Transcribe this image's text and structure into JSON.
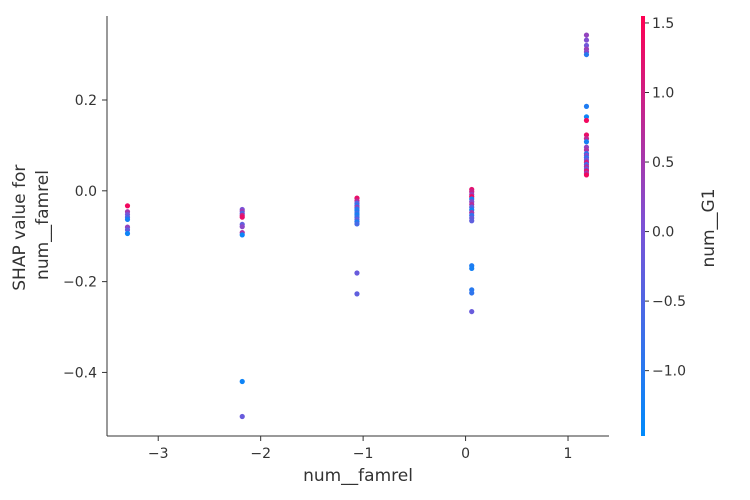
{
  "chart_data": {
    "type": "scatter",
    "title": "",
    "xlabel": "num__famrel",
    "ylabel_lines": [
      "SHAP value for",
      "num__famrel"
    ],
    "xlim": [
      -3.5,
      1.4
    ],
    "ylim": [
      -0.54,
      0.385
    ],
    "xticks": [
      -3,
      -2,
      -1,
      0,
      1
    ],
    "xtick_labels": [
      "−3",
      "−2",
      "−1",
      "0",
      "1"
    ],
    "yticks": [
      -0.4,
      -0.2,
      0.0,
      0.2
    ],
    "ytick_labels": [
      "−0.4",
      "−0.2",
      "0.0",
      "0.2"
    ],
    "grid": false,
    "colorbar": {
      "label": "num__G1",
      "range": [
        -1.47,
        1.55
      ],
      "ticks": [
        -1.0,
        -0.5,
        0.0,
        0.5,
        1.0,
        1.5
      ],
      "tick_labels": [
        "−1.0",
        "−0.5",
        "0.0",
        "0.5",
        "1.0",
        "1.5"
      ],
      "colormap": [
        "#008afb",
        "#7c52d6",
        "#ff0052"
      ]
    },
    "points": [
      {
        "x": -3.3,
        "y": -0.033,
        "c": 1.4
      },
      {
        "x": -3.3,
        "y": -0.046,
        "c": 0.5
      },
      {
        "x": -3.3,
        "y": -0.052,
        "c": 0.0
      },
      {
        "x": -3.3,
        "y": -0.058,
        "c": -0.5
      },
      {
        "x": -3.3,
        "y": -0.063,
        "c": -1.2
      },
      {
        "x": -3.3,
        "y": -0.08,
        "c": 0.3
      },
      {
        "x": -3.3,
        "y": -0.086,
        "c": -0.3
      },
      {
        "x": -3.3,
        "y": -0.094,
        "c": -1.3
      },
      {
        "x": -2.18,
        "y": -0.041,
        "c": 0.0
      },
      {
        "x": -2.18,
        "y": -0.045,
        "c": 0.4
      },
      {
        "x": -2.18,
        "y": -0.05,
        "c": -0.5
      },
      {
        "x": -2.18,
        "y": -0.054,
        "c": 0.9
      },
      {
        "x": -2.18,
        "y": -0.058,
        "c": 1.3
      },
      {
        "x": -2.18,
        "y": -0.074,
        "c": -0.3
      },
      {
        "x": -2.18,
        "y": -0.079,
        "c": 0.2
      },
      {
        "x": -2.18,
        "y": -0.092,
        "c": 0.6
      },
      {
        "x": -2.18,
        "y": -0.097,
        "c": -1.3
      },
      {
        "x": -2.18,
        "y": -0.42,
        "c": -1.3
      },
      {
        "x": -2.18,
        "y": -0.497,
        "c": -0.2
      },
      {
        "x": -1.06,
        "y": -0.016,
        "c": 1.3
      },
      {
        "x": -1.06,
        "y": -0.022,
        "c": 0.8
      },
      {
        "x": -1.06,
        "y": -0.027,
        "c": -0.4
      },
      {
        "x": -1.06,
        "y": -0.032,
        "c": -1.0
      },
      {
        "x": -1.06,
        "y": -0.036,
        "c": 0.4
      },
      {
        "x": -1.06,
        "y": -0.04,
        "c": -0.9
      },
      {
        "x": -1.06,
        "y": -0.044,
        "c": -1.1
      },
      {
        "x": -1.06,
        "y": -0.049,
        "c": -0.7
      },
      {
        "x": -1.06,
        "y": -0.053,
        "c": -1.2
      },
      {
        "x": -1.06,
        "y": -0.058,
        "c": -0.8
      },
      {
        "x": -1.06,
        "y": -0.063,
        "c": -0.2
      },
      {
        "x": -1.06,
        "y": -0.068,
        "c": -1.1
      },
      {
        "x": -1.06,
        "y": -0.073,
        "c": -0.6
      },
      {
        "x": -1.06,
        "y": -0.181,
        "c": -0.2
      },
      {
        "x": -1.06,
        "y": -0.227,
        "c": -0.3
      },
      {
        "x": 0.06,
        "y": 0.003,
        "c": 1.2
      },
      {
        "x": 0.06,
        "y": -0.002,
        "c": 0.9
      },
      {
        "x": 0.06,
        "y": -0.008,
        "c": 0.4
      },
      {
        "x": 0.06,
        "y": -0.013,
        "c": 1.4
      },
      {
        "x": 0.06,
        "y": -0.018,
        "c": -1.1
      },
      {
        "x": 0.06,
        "y": -0.024,
        "c": 0.2
      },
      {
        "x": 0.06,
        "y": -0.03,
        "c": 0.7
      },
      {
        "x": 0.06,
        "y": -0.036,
        "c": -0.4
      },
      {
        "x": 0.06,
        "y": -0.042,
        "c": -1.2
      },
      {
        "x": 0.06,
        "y": -0.048,
        "c": 0.5
      },
      {
        "x": 0.06,
        "y": -0.054,
        "c": -0.8
      },
      {
        "x": 0.06,
        "y": -0.06,
        "c": -0.2
      },
      {
        "x": 0.06,
        "y": -0.066,
        "c": -0.3
      },
      {
        "x": 0.06,
        "y": -0.165,
        "c": -1.1
      },
      {
        "x": 0.06,
        "y": -0.171,
        "c": -1.2
      },
      {
        "x": 0.06,
        "y": -0.218,
        "c": -1.0
      },
      {
        "x": 0.06,
        "y": -0.225,
        "c": -0.9
      },
      {
        "x": 0.06,
        "y": -0.266,
        "c": -0.2
      },
      {
        "x": 1.18,
        "y": 0.343,
        "c": 0.3
      },
      {
        "x": 1.18,
        "y": 0.332,
        "c": 0.1
      },
      {
        "x": 1.18,
        "y": 0.32,
        "c": -0.1
      },
      {
        "x": 1.18,
        "y": 0.312,
        "c": 0.4
      },
      {
        "x": 1.18,
        "y": 0.306,
        "c": 0.2
      },
      {
        "x": 1.18,
        "y": 0.3,
        "c": -1.0
      },
      {
        "x": 1.18,
        "y": 0.186,
        "c": -1.1
      },
      {
        "x": 1.18,
        "y": 0.163,
        "c": -1.3
      },
      {
        "x": 1.18,
        "y": 0.155,
        "c": 1.4
      },
      {
        "x": 1.18,
        "y": 0.123,
        "c": 1.3
      },
      {
        "x": 1.18,
        "y": 0.115,
        "c": 0.8
      },
      {
        "x": 1.18,
        "y": 0.108,
        "c": -1.2
      },
      {
        "x": 1.18,
        "y": 0.096,
        "c": 0.3
      },
      {
        "x": 1.18,
        "y": 0.09,
        "c": 0.6
      },
      {
        "x": 1.18,
        "y": 0.082,
        "c": -1.0
      },
      {
        "x": 1.18,
        "y": 0.078,
        "c": 0.2
      },
      {
        "x": 1.18,
        "y": 0.073,
        "c": -0.9
      },
      {
        "x": 1.18,
        "y": 0.068,
        "c": 0.0
      },
      {
        "x": 1.18,
        "y": 0.063,
        "c": 1.0
      },
      {
        "x": 1.18,
        "y": 0.058,
        "c": -0.6
      },
      {
        "x": 1.18,
        "y": 0.053,
        "c": 0.7
      },
      {
        "x": 1.18,
        "y": 0.048,
        "c": -0.3
      },
      {
        "x": 1.18,
        "y": 0.044,
        "c": 1.2
      },
      {
        "x": 1.18,
        "y": 0.039,
        "c": 0.5
      },
      {
        "x": 1.18,
        "y": 0.035,
        "c": 1.4
      }
    ]
  }
}
